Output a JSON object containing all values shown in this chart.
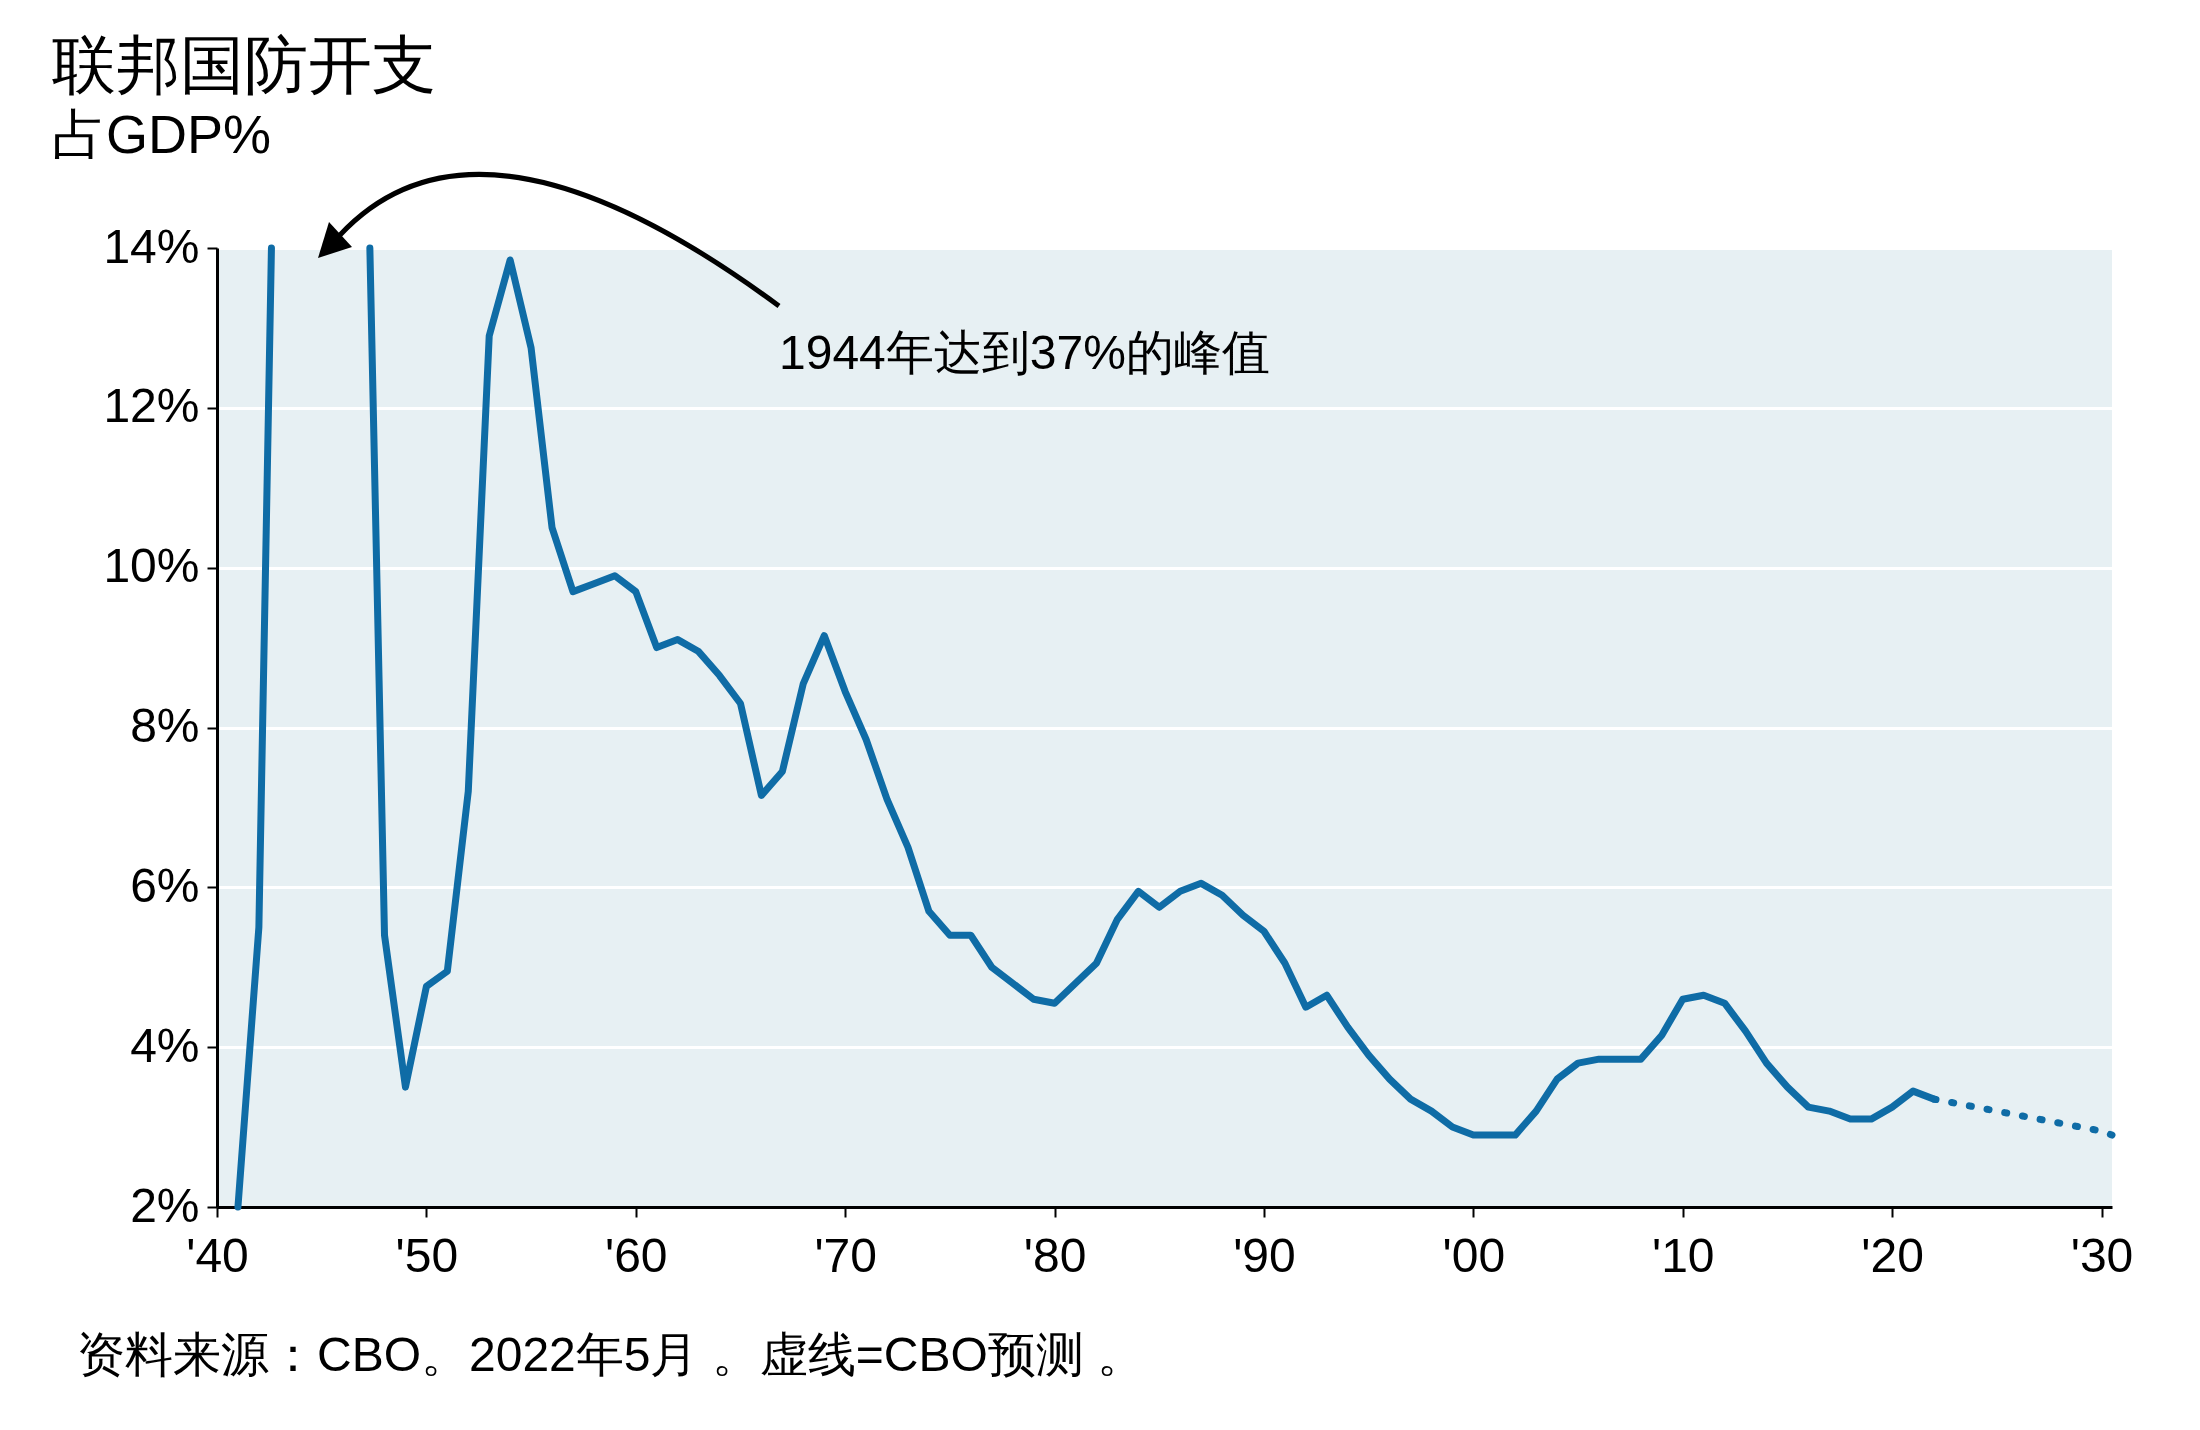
{
  "chart_data": {
    "type": "line",
    "title": "联邦国防开支",
    "subtitle": "占GDP%",
    "annotations": [
      "1944年达到37%的峰值",
      "资料来源：CBO。2022年5月 。虚线=CBO预测 。"
    ],
    "xlim": [
      1940,
      2030.5
    ],
    "xticks": [
      {
        "value": 1940,
        "label": "'40"
      },
      {
        "value": 1950,
        "label": "'50"
      },
      {
        "value": 1960,
        "label": "'60"
      },
      {
        "value": 1970,
        "label": "'70"
      },
      {
        "value": 1980,
        "label": "'80"
      },
      {
        "value": 1990,
        "label": "'90"
      },
      {
        "value": 2000,
        "label": "'00"
      },
      {
        "value": 2010,
        "label": "'10"
      },
      {
        "value": 2020,
        "label": "'20"
      },
      {
        "value": 2030,
        "label": "'30"
      }
    ],
    "ylim": [
      2,
      14
    ],
    "yticks": [
      {
        "value": 2,
        "label": "2%"
      },
      {
        "value": 4,
        "label": "4%"
      },
      {
        "value": 6,
        "label": "6%"
      },
      {
        "value": 8,
        "label": "8%"
      },
      {
        "value": 10,
        "label": "10%"
      },
      {
        "value": 12,
        "label": "12%"
      },
      {
        "value": 14,
        "label": "14%"
      }
    ],
    "grid": "y",
    "marker": "none",
    "series": [
      {
        "color": "#0f6ca6",
        "line_style": "solid",
        "x": [
          1941,
          1942,
          1942.6,
          1945,
          1947.3,
          1948,
          1949,
          1950,
          1951,
          1952,
          1953,
          1954,
          1955,
          1956,
          1957,
          1958,
          1959,
          1960,
          1961,
          1962,
          1963,
          1964,
          1965,
          1966,
          1967,
          1968,
          1969,
          1970,
          1971,
          1972,
          1973,
          1974,
          1975,
          1976,
          1977,
          1978,
          1979,
          1980,
          1981,
          1982,
          1983,
          1984,
          1985,
          1986,
          1987,
          1988,
          1989,
          1990,
          1991,
          1992,
          1993,
          1994,
          1995,
          1996,
          1997,
          1998,
          1999,
          2000,
          2001,
          2002,
          2003,
          2004,
          2005,
          2006,
          2007,
          2008,
          2009,
          2010,
          2011,
          2012,
          2013,
          2014,
          2015,
          2016,
          2017,
          2018,
          2019,
          2020,
          2021,
          2022
        ],
        "values": [
          2.0,
          5.5,
          14,
          null,
          14,
          5.4,
          3.5,
          4.76,
          4.95,
          7.2,
          12.9,
          13.85,
          12.75,
          10.5,
          9.7,
          9.8,
          9.9,
          9.7,
          9.0,
          9.1,
          8.95,
          8.65,
          8.3,
          7.15,
          7.45,
          8.55,
          9.15,
          8.45,
          7.85,
          7.1,
          6.5,
          5.7,
          5.4,
          5.4,
          5.0,
          4.8,
          4.6,
          4.55,
          4.8,
          5.05,
          5.6,
          5.95,
          5.75,
          5.95,
          6.05,
          5.9,
          5.65,
          5.45,
          5.05,
          4.5,
          4.65,
          4.25,
          3.9,
          3.6,
          3.35,
          3.2,
          3.0,
          2.9,
          2.9,
          2.9,
          3.2,
          3.6,
          3.8,
          3.85,
          3.85,
          3.85,
          4.15,
          4.6,
          4.65,
          4.55,
          4.2,
          3.8,
          3.5,
          3.25,
          3.2,
          3.1,
          3.1,
          3.25,
          3.45,
          3.35
        ]
      },
      {
        "color": "#0f6ca6",
        "line_style": "dotted",
        "x": [
          2022,
          2023,
          2024,
          2025,
          2026,
          2027,
          2028,
          2029,
          2030,
          2030.5
        ],
        "values": [
          3.35,
          3.3,
          3.25,
          3.2,
          3.15,
          3.1,
          3.05,
          3.0,
          2.95,
          2.9
        ]
      }
    ]
  }
}
